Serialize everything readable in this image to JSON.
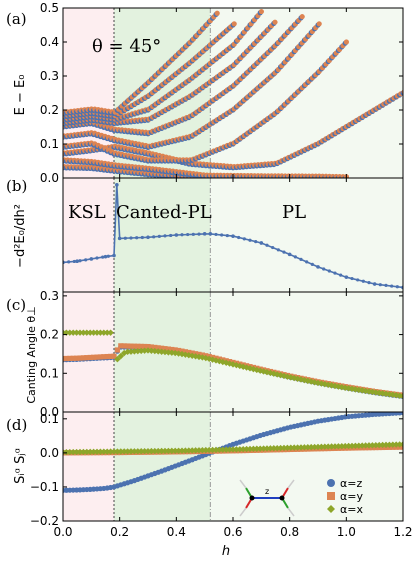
{
  "chart_data": [
    {
      "panel": "(a)",
      "type": "scatter",
      "ylabel": "E − E₀",
      "annotation": "θ = 45°",
      "ylim": [
        0,
        0.5
      ],
      "yticks": [
        "0.0",
        "0.1",
        "0.2",
        "0.3",
        "0.4",
        "0.5"
      ],
      "series": [
        {
          "x": [
            0.0,
            0.1,
            0.18,
            0.3,
            0.5,
            0.7,
            0.9,
            1.0
          ],
          "y": [
            0.03,
            0.028,
            0.02,
            0.01,
            0.0,
            0.0,
            0.0,
            0.0
          ]
        },
        {
          "x": [
            0.0,
            0.1,
            0.18,
            0.3,
            0.5,
            0.7,
            0.9,
            1.0
          ],
          "y": [
            0.05,
            0.045,
            0.035,
            0.025,
            0.005,
            0.003,
            0.002,
            0.0
          ]
        },
        {
          "x": [
            0.0,
            0.1,
            0.18,
            0.3,
            0.45,
            0.6,
            0.75,
            0.9,
            1.1,
            1.2
          ],
          "y": [
            0.07,
            0.08,
            0.09,
            0.07,
            0.04,
            0.03,
            0.04,
            0.1,
            0.2,
            0.25
          ]
        },
        {
          "x": [
            0.0,
            0.1,
            0.18,
            0.3,
            0.45,
            0.6,
            0.75,
            0.9,
            1.0
          ],
          "y": [
            0.09,
            0.1,
            0.07,
            0.05,
            0.05,
            0.1,
            0.19,
            0.31,
            0.4
          ]
        },
        {
          "x": [
            0.0,
            0.1,
            0.18,
            0.3,
            0.45,
            0.6,
            0.75,
            0.9
          ],
          "y": [
            0.12,
            0.13,
            0.11,
            0.09,
            0.12,
            0.2,
            0.31,
            0.45
          ]
        },
        {
          "x": [
            0.0,
            0.1,
            0.18,
            0.3,
            0.45,
            0.6,
            0.75,
            0.85
          ],
          "y": [
            0.15,
            0.16,
            0.14,
            0.13,
            0.18,
            0.27,
            0.39,
            0.48
          ]
        },
        {
          "x": [
            0.0,
            0.1,
            0.18,
            0.3,
            0.45,
            0.6,
            0.75
          ],
          "y": [
            0.16,
            0.17,
            0.16,
            0.17,
            0.24,
            0.33,
            0.46
          ]
        },
        {
          "x": [
            0.0,
            0.1,
            0.18,
            0.3,
            0.45,
            0.6,
            0.7
          ],
          "y": [
            0.17,
            0.18,
            0.17,
            0.2,
            0.29,
            0.39,
            0.49
          ]
        },
        {
          "x": [
            0.0,
            0.1,
            0.18,
            0.3,
            0.45,
            0.6
          ],
          "y": [
            0.18,
            0.19,
            0.18,
            0.24,
            0.34,
            0.45
          ]
        },
        {
          "x": [
            0.0,
            0.1,
            0.18,
            0.3,
            0.45,
            0.55
          ],
          "y": [
            0.19,
            0.2,
            0.19,
            0.28,
            0.4,
            0.49
          ]
        }
      ]
    },
    {
      "panel": "(b)",
      "type": "line",
      "ylabel": "−d²E₀/dh²",
      "phase_labels": [
        "KSL",
        "Canted-PL",
        "PL"
      ],
      "series": [
        {
          "x": [
            0.0,
            0.05,
            0.1,
            0.15,
            0.18,
            0.19,
            0.2,
            0.3,
            0.4,
            0.5,
            0.52,
            0.6,
            0.7,
            0.8,
            0.9,
            1.0,
            1.1,
            1.2
          ],
          "y": [
            0.26,
            0.27,
            0.29,
            0.31,
            0.32,
            0.94,
            0.47,
            0.48,
            0.5,
            0.51,
            0.51,
            0.49,
            0.43,
            0.33,
            0.22,
            0.13,
            0.07,
            0.04
          ]
        }
      ]
    },
    {
      "panel": "(c)",
      "type": "scatter",
      "ylabel": "Canting Angle θ⊥",
      "ylim": [
        0,
        0.31
      ],
      "yticks": [
        "0.0",
        "0.1",
        "0.2",
        "0.3"
      ],
      "series": [
        {
          "name": "α=z",
          "color": "#4c72b0",
          "x": [
            0.0,
            0.05,
            0.1,
            0.15,
            0.18,
            0.2,
            0.3,
            0.4,
            0.5,
            0.6,
            0.7,
            0.8,
            0.9,
            1.0,
            1.1,
            1.2
          ],
          "y": [
            0.135,
            0.136,
            0.138,
            0.14,
            0.141,
            0.168,
            0.166,
            0.157,
            0.143,
            0.125,
            0.107,
            0.09,
            0.075,
            0.062,
            0.05,
            0.04
          ]
        },
        {
          "name": "α=y",
          "color": "#dd8452",
          "x": [
            0.0,
            0.05,
            0.1,
            0.15,
            0.18,
            0.2,
            0.3,
            0.4,
            0.5,
            0.6,
            0.7,
            0.8,
            0.9,
            1.0,
            1.1,
            1.2
          ],
          "y": [
            0.138,
            0.139,
            0.141,
            0.143,
            0.144,
            0.171,
            0.169,
            0.16,
            0.146,
            0.128,
            0.11,
            0.093,
            0.078,
            0.065,
            0.053,
            0.043
          ]
        },
        {
          "name": "α=x",
          "color": "#8ea62a",
          "x": [
            0.0,
            0.05,
            0.1,
            0.15,
            0.18,
            0.19,
            0.22,
            0.3,
            0.4,
            0.5,
            0.6,
            0.7,
            0.8,
            0.9,
            1.0,
            1.1,
            1.2
          ],
          "y": [
            0.205,
            0.205,
            0.205,
            0.205,
            0.205,
            0.135,
            0.155,
            0.159,
            0.152,
            0.14,
            0.123,
            0.106,
            0.09,
            0.075,
            0.062,
            0.051,
            0.041
          ]
        }
      ]
    },
    {
      "panel": "(d)",
      "type": "scatter",
      "ylabel": "Sᵢᵅ Sⱼᵅ",
      "xlabel": "h",
      "xlim": [
        0,
        1.2
      ],
      "ylim": [
        -0.2,
        0.12
      ],
      "xticks": [
        "0.0",
        "0.2",
        "0.4",
        "0.6",
        "0.8",
        "1.0",
        "1.2"
      ],
      "yticks": [
        "−0.2",
        "−0.1",
        "0.0",
        "0.1"
      ],
      "series": [
        {
          "name": "α=z",
          "color": "#4c72b0",
          "x": [
            0.0,
            0.05,
            0.1,
            0.15,
            0.18,
            0.25,
            0.35,
            0.45,
            0.52,
            0.6,
            0.7,
            0.8,
            0.9,
            1.0,
            1.1,
            1.2
          ],
          "y": [
            -0.11,
            -0.109,
            -0.107,
            -0.104,
            -0.1,
            -0.082,
            -0.053,
            -0.022,
            0.0,
            0.025,
            0.052,
            0.075,
            0.093,
            0.106,
            0.113,
            0.118
          ]
        },
        {
          "name": "α=y",
          "color": "#dd8452",
          "x": [
            0.0,
            0.2,
            0.4,
            0.6,
            0.8,
            1.0,
            1.2
          ],
          "y": [
            0.0,
            0.001,
            0.003,
            0.006,
            0.01,
            0.014,
            0.017
          ]
        },
        {
          "name": "α=x",
          "color": "#8ea62a",
          "x": [
            0.0,
            0.2,
            0.4,
            0.6,
            0.8,
            1.0,
            1.2
          ],
          "y": [
            0.002,
            0.004,
            0.006,
            0.01,
            0.015,
            0.02,
            0.025
          ]
        }
      ],
      "legend": [
        "α=z",
        "α=y",
        "α=x"
      ],
      "legend_position": "lower-right"
    }
  ],
  "phase_boundaries": [
    0.18,
    0.52
  ],
  "region_colors": {
    "ksl": "#fdeef0",
    "canted": "#e3f2df",
    "pl": "#f3f9f1",
    "ksl_line": "#444444",
    "pl_line": "#999999"
  },
  "panel_labels": [
    "(a)",
    "(b)",
    "(c)",
    "(d)"
  ],
  "inset_label": "z"
}
